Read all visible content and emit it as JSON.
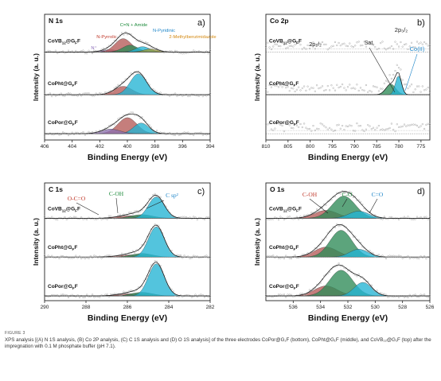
{
  "colors": {
    "red": "#b55a57",
    "green": "#2e8b57",
    "cyan": "#22b3d4",
    "olive": "#9a9a3a",
    "purple": "#8d6fb0",
    "raw": "#a9a9a9",
    "fit": "#111111",
    "annot_red": "#c0392b",
    "annot_green": "#1e8b3c",
    "annot_blue": "#1f86c9",
    "annot_orange": "#d4880f",
    "annot_purple": "#8a6bb8"
  },
  "caption": {
    "label": "FIGURE 3",
    "text": "XPS analysis [(A) N 1S analysis, (B) Co 2P analysis, (C) C 1S analysis and (D) O 1S analysis] of the three electrodes CoPor@G₁F (bottom), CoPht@G₁F (middle), and CoVB₁₂@G₁F (top) after the impregnation with 0.1 M phosphate buffer (pH 7.1)."
  },
  "chart_data": [
    {
      "type": "line",
      "panel": "a)",
      "element": "N 1s",
      "xlabel": "Binding Energy (eV)",
      "ylabel": "Intensity (a. u.)",
      "xlim": [
        406,
        394
      ],
      "xticks": [
        406,
        404,
        402,
        400,
        398,
        396,
        394
      ],
      "samples": [
        "CoVB12@G₁F",
        "CoPht@G₁F",
        "CoPor@G₁F"
      ],
      "components": [
        {
          "name": "N⁺",
          "sample": 0,
          "center": 401.3,
          "fwhm": 1.3,
          "height": 0.06
        },
        {
          "name": "N-Pyrrolic",
          "sample": 0,
          "center": 400.3,
          "fwhm": 1.4,
          "height": 0.35
        },
        {
          "name": "C=N + Amide",
          "sample": 0,
          "center": 399.8,
          "fwhm": 1.3,
          "height": 0.18
        },
        {
          "name": "N-Pyridinic",
          "sample": 0,
          "center": 398.9,
          "fwhm": 1.2,
          "height": 0.14
        },
        {
          "name": "2-Methylbenzimidazole",
          "sample": 0,
          "center": 398.3,
          "fwhm": 1.2,
          "height": 0.08
        },
        {
          "name": "N-Pyrrolic",
          "sample": 1,
          "center": 400.3,
          "fwhm": 1.5,
          "height": 0.22
        },
        {
          "name": "N-Pyridinic",
          "sample": 1,
          "center": 399.2,
          "fwhm": 1.4,
          "height": 0.55
        },
        {
          "name": "N-Pyrrolic",
          "sample": 2,
          "center": 400.0,
          "fwhm": 1.6,
          "height": 0.42
        },
        {
          "name": "N-Pyridinic",
          "sample": 2,
          "center": 399.0,
          "fwhm": 1.3,
          "height": 0.28
        },
        {
          "name": "N⁺",
          "sample": 2,
          "center": 401.2,
          "fwhm": 1.6,
          "height": 0.12
        }
      ],
      "annotations": [
        "N⁺",
        "N-Pyrrolic",
        "C=N + Amide",
        "N-Pyridinic",
        "2-Methylbenzimidazole"
      ]
    },
    {
      "type": "line",
      "panel": "b)",
      "element": "Co 2p",
      "xlabel": "Binding Energy (eV)",
      "ylabel": "Intensity (a. u.)",
      "xlim": [
        810,
        773
      ],
      "xticks": [
        810,
        805,
        800,
        795,
        790,
        785,
        780,
        775
      ],
      "samples": [
        "CoVB12@G₁F",
        "CoPht@G₁F",
        "CoPor@G₁F"
      ],
      "components": [
        {
          "name": "Sat.",
          "sample": 1,
          "center": 781.8,
          "fwhm": 2.6,
          "height": 0.28
        },
        {
          "name": "Co(II)",
          "sample": 1,
          "center": 780.1,
          "fwhm": 1.6,
          "height": 0.5
        }
      ],
      "annotations": [
        "2p₁/₂",
        "Sat.",
        "2p₃/₂",
        "Co(II)"
      ]
    },
    {
      "type": "line",
      "panel": "c)",
      "element": "C 1s",
      "xlabel": "Binding Energy (eV)",
      "ylabel": "Intensity (a. u.)",
      "xlim": [
        290,
        282
      ],
      "xticks": [
        290,
        288,
        286,
        284,
        282
      ],
      "samples": [
        "CoVB12@G₁F",
        "CoPht@G₁F",
        "CoPor@G₁F"
      ],
      "components": [
        {
          "name": "O-C=O",
          "sample": 0,
          "center": 285.9,
          "fwhm": 1.4,
          "height": 0.07
        },
        {
          "name": "C-OH",
          "sample": 0,
          "center": 285.3,
          "fwhm": 1.2,
          "height": 0.1
        },
        {
          "name": "C sp²",
          "sample": 0,
          "center": 284.6,
          "fwhm": 0.9,
          "height": 0.6
        },
        {
          "name": "O-C=O",
          "sample": 1,
          "center": 285.9,
          "fwhm": 1.4,
          "height": 0.06
        },
        {
          "name": "C-OH",
          "sample": 1,
          "center": 285.3,
          "fwhm": 1.2,
          "height": 0.1
        },
        {
          "name": "C sp²",
          "sample": 1,
          "center": 284.6,
          "fwhm": 0.9,
          "height": 0.85
        },
        {
          "name": "O-C=O",
          "sample": 2,
          "center": 285.9,
          "fwhm": 1.4,
          "height": 0.06
        },
        {
          "name": "C-OH",
          "sample": 2,
          "center": 285.3,
          "fwhm": 1.2,
          "height": 0.1
        },
        {
          "name": "C sp²",
          "sample": 2,
          "center": 284.6,
          "fwhm": 0.9,
          "height": 0.9
        }
      ],
      "annotations": [
        "O-C=O",
        "C-OH",
        "C sp²"
      ]
    },
    {
      "type": "line",
      "panel": "d)",
      "element": "O 1s",
      "xlabel": "Binding Energy (eV)",
      "ylabel": "Intensity (a. u.)",
      "xlim": [
        538,
        526
      ],
      "xticks": [
        536,
        534,
        532,
        530,
        528,
        526
      ],
      "samples": [
        "CoVB12@G₁F",
        "CoPht@G₁F",
        "CoPor@G₁F"
      ],
      "components": [
        {
          "name": "C-OH",
          "sample": 0,
          "center": 533.6,
          "fwhm": 2.0,
          "height": 0.22
        },
        {
          "name": "C-O",
          "sample": 0,
          "center": 532.3,
          "fwhm": 2.0,
          "height": 0.62
        },
        {
          "name": "C=O",
          "sample": 0,
          "center": 531.2,
          "fwhm": 1.7,
          "height": 0.2
        },
        {
          "name": "C-OH",
          "sample": 1,
          "center": 533.6,
          "fwhm": 2.0,
          "height": 0.28
        },
        {
          "name": "C-O",
          "sample": 1,
          "center": 532.5,
          "fwhm": 1.9,
          "height": 0.75
        },
        {
          "name": "C=O",
          "sample": 1,
          "center": 531.2,
          "fwhm": 1.6,
          "height": 0.22
        },
        {
          "name": "C-OH",
          "sample": 2,
          "center": 533.6,
          "fwhm": 2.0,
          "height": 0.28
        },
        {
          "name": "C-O",
          "sample": 2,
          "center": 532.5,
          "fwhm": 2.0,
          "height": 0.72
        },
        {
          "name": "C=O",
          "sample": 2,
          "center": 530.9,
          "fwhm": 1.5,
          "height": 0.38
        }
      ],
      "annotations": [
        "C-OH",
        "C-O",
        "C=O"
      ]
    }
  ]
}
